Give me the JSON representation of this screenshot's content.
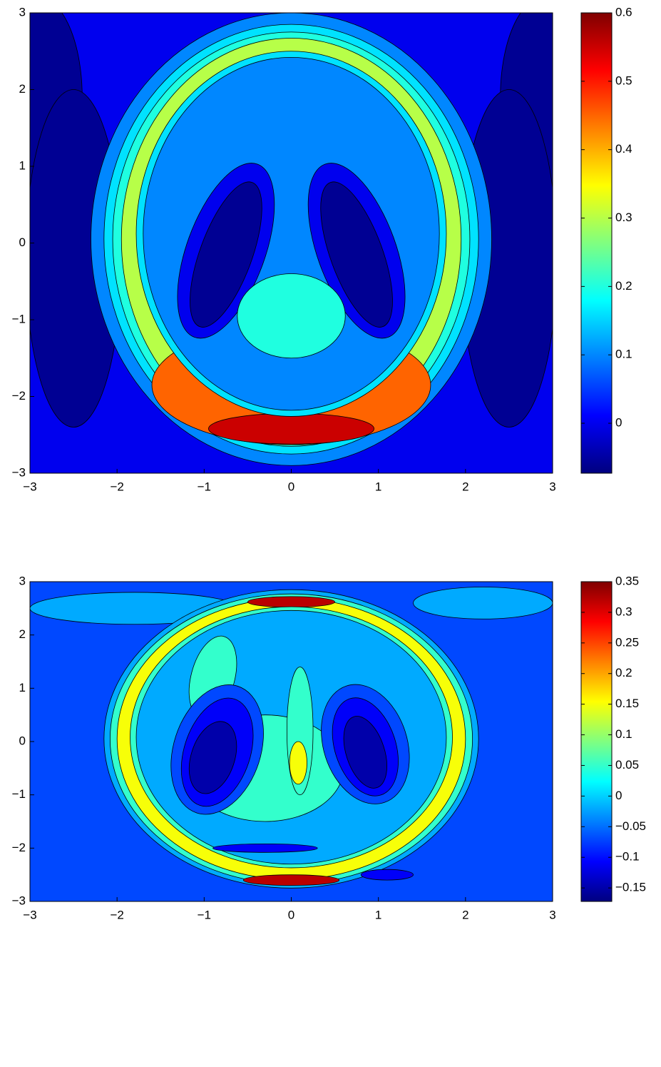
{
  "chart_data": [
    {
      "type": "contour",
      "colormap": "jet",
      "xlim": [
        -3,
        3
      ],
      "ylim": [
        -3,
        3
      ],
      "xticks": [
        {
          "value": -3,
          "label": "−3"
        },
        {
          "value": -2,
          "label": "−2"
        },
        {
          "value": -1,
          "label": "−1"
        },
        0,
        1,
        2,
        3
      ],
      "yticks": [
        {
          "value": -3,
          "label": "−3"
        },
        {
          "value": -2,
          "label": "−2"
        },
        {
          "value": -1,
          "label": "−1"
        },
        0,
        1,
        2,
        3
      ],
      "clim": [
        -0.073,
        0.6
      ],
      "cticks": [
        0,
        0.1,
        0.2,
        0.3,
        0.4,
        0.5,
        0.6
      ],
      "levels": [
        -0.06,
        0.0,
        0.1,
        0.16,
        0.2,
        0.3,
        0.45,
        0.55
      ]
    },
    {
      "type": "contour",
      "colormap": "jet",
      "xlim": [
        -3,
        3
      ],
      "ylim": [
        -3,
        3
      ],
      "xticks": [
        {
          "value": -3,
          "label": "−3"
        },
        {
          "value": -2,
          "label": "−2"
        },
        {
          "value": -1,
          "label": "−1"
        },
        0,
        1,
        2,
        3
      ],
      "yticks": [
        {
          "value": -3,
          "label": "−3"
        },
        {
          "value": -2,
          "label": "−2"
        },
        {
          "value": -1,
          "label": "−1"
        },
        0,
        1,
        2,
        3
      ],
      "clim": [
        -0.172,
        0.35
      ],
      "cticks": [
        {
          "value": -0.15,
          "label": "−0.15"
        },
        {
          "value": -0.1,
          "label": "−0.1"
        },
        {
          "value": -0.05,
          "label": "−0.05"
        },
        0,
        0.05,
        0.1,
        0.15,
        0.2,
        0.25,
        0.3,
        0.35
      ],
      "levels": [
        -0.15,
        -0.11,
        -0.07,
        -0.02,
        0.05,
        0.15,
        0.22,
        0.32
      ]
    }
  ]
}
